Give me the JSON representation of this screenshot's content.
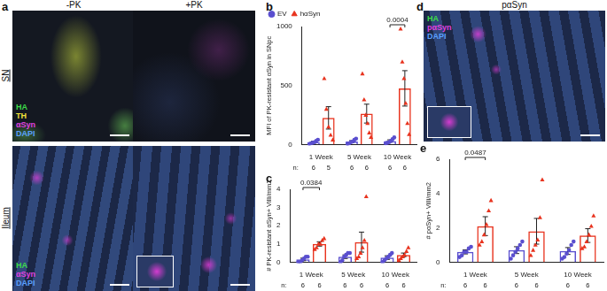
{
  "chart_data": [
    {
      "panel": "b",
      "type": "bar",
      "y_label": "MFI of PK-resistant αSyn in SNpc",
      "categories": [
        "1 Week",
        "5 Week",
        "10 Week"
      ],
      "ylim": [
        0,
        1000
      ],
      "yticks": [
        0,
        500,
        1000
      ],
      "grid": false,
      "legend": "upper left",
      "n_label": "n:",
      "series": [
        {
          "name": "EV",
          "color": "#5a4fcf",
          "marker": "circle",
          "values": [
            20,
            25,
            30
          ],
          "errors": [
            8,
            8,
            10
          ],
          "n": [
            6,
            6,
            6
          ],
          "points": [
            [
              5,
              10,
              15,
              20,
              30,
              40
            ],
            [
              5,
              10,
              20,
              25,
              40,
              50
            ],
            [
              10,
              15,
              20,
              30,
              45,
              60
            ]
          ]
        },
        {
          "name": "hαSyn",
          "color": "#e8331e",
          "marker": "triangle",
          "values": [
            226,
            262,
            476
          ],
          "errors": [
            95,
            80,
            150
          ],
          "n": [
            5,
            6,
            6
          ],
          "points": [
            [
              560,
              300,
              150,
              80,
              40
            ],
            [
              600,
              380,
              250,
              180,
              100,
              62
            ],
            [
              980,
              700,
              560,
              350,
              180,
              86
            ]
          ]
        }
      ],
      "annotations": [
        {
          "category": "10 Week",
          "text": "0.0004"
        }
      ]
    },
    {
      "panel": "c",
      "type": "bar",
      "y_label": "# PK-resistant αSyn+ Villi/mm2",
      "categories": [
        "1 Week",
        "5 Week",
        "10 Week"
      ],
      "ylim": [
        0,
        4
      ],
      "yticks": [
        0,
        1,
        2,
        3,
        4
      ],
      "grid": false,
      "n_label": "n:",
      "series": [
        {
          "name": "EV",
          "color": "#5a4fcf",
          "marker": "circle",
          "values": [
            0.15,
            0.3,
            0.25
          ],
          "errors": [
            0.07,
            0.1,
            0.1
          ],
          "n": [
            6,
            6,
            6
          ],
          "points": [
            [
              0,
              0,
              0.1,
              0.2,
              0.3,
              0.3
            ],
            [
              0,
              0.1,
              0.3,
              0.4,
              0.5,
              0.5
            ],
            [
              0,
              0.1,
              0.2,
              0.3,
              0.4,
              0.5
            ]
          ]
        },
        {
          "name": "hαSyn",
          "color": "#e8331e",
          "marker": "triangle",
          "values": [
            1.0,
            1.1,
            0.4
          ],
          "errors": [
            0.12,
            0.55,
            0.1
          ],
          "n": [
            6,
            6,
            6
          ],
          "points": [
            [
              0.7,
              0.8,
              1.0,
              1.0,
              1.2,
              1.3
            ],
            [
              0.2,
              0.3,
              0.5,
              0.8,
              1.2,
              3.6
            ],
            [
              0.1,
              0.2,
              0.3,
              0.4,
              0.6,
              0.8
            ]
          ]
        }
      ],
      "annotations": [
        {
          "category": "1 Week",
          "text": "0.0384"
        }
      ]
    },
    {
      "panel": "e",
      "type": "bar",
      "y_label": "# pαSyn+ Villi/mm2",
      "categories": [
        "1 Week",
        "5 Week",
        "10 Week"
      ],
      "ylim": [
        0,
        6
      ],
      "yticks": [
        0,
        2,
        4,
        6
      ],
      "grid": false,
      "n_label": "n:",
      "series": [
        {
          "name": "EV",
          "color": "#5a4fcf",
          "marker": "circle",
          "values": [
            0.6,
            0.7,
            0.65
          ],
          "errors": [
            0.12,
            0.2,
            0.2
          ],
          "n": [
            6,
            6,
            6
          ],
          "points": [
            [
              0.3,
              0.4,
              0.6,
              0.6,
              0.8,
              0.9
            ],
            [
              0.2,
              0.4,
              0.6,
              0.8,
              1.0,
              1.2
            ],
            [
              0.2,
              0.3,
              0.5,
              0.7,
              1.0,
              1.2
            ]
          ]
        },
        {
          "name": "hαSyn",
          "color": "#e8331e",
          "marker": "triangle",
          "values": [
            2.1,
            1.8,
            1.55
          ],
          "errors": [
            0.55,
            0.75,
            0.4
          ],
          "n": [
            6,
            6,
            6
          ],
          "points": [
            [
              1.0,
              1.2,
              1.6,
              2.2,
              3.0,
              3.6
            ],
            [
              0.4,
              0.7,
              1.0,
              1.3,
              2.6,
              4.8
            ],
            [
              0.8,
              0.9,
              1.2,
              1.6,
              2.1,
              2.7
            ]
          ]
        }
      ],
      "annotations": [
        {
          "category": "1 Week",
          "text": "0.0487"
        }
      ]
    }
  ],
  "images": {
    "a": {
      "panel": "a",
      "columns": [
        "-PK",
        "+PK"
      ],
      "rows": [
        {
          "label": "SN",
          "channels": [
            {
              "text": "HA",
              "color": "#3ddc4a"
            },
            {
              "text": "TH",
              "color": "#f2e23a"
            },
            {
              "text": "αSyn",
              "color": "#e040e0"
            },
            {
              "text": "DAPI",
              "color": "#5aa0ff"
            }
          ]
        },
        {
          "label": "Ileum",
          "channels": [
            {
              "text": "HA",
              "color": "#3ddc4a"
            },
            {
              "text": "αSyn",
              "color": "#e040e0"
            },
            {
              "text": "DAPI",
              "color": "#5aa0ff"
            }
          ]
        }
      ]
    },
    "d": {
      "panel": "d",
      "title": "pαSyn",
      "channels": [
        {
          "text": "HA",
          "color": "#3ddc4a"
        },
        {
          "text": "pαSyn",
          "color": "#e040e0"
        },
        {
          "text": "DAPI",
          "color": "#5aa0ff"
        }
      ]
    }
  }
}
